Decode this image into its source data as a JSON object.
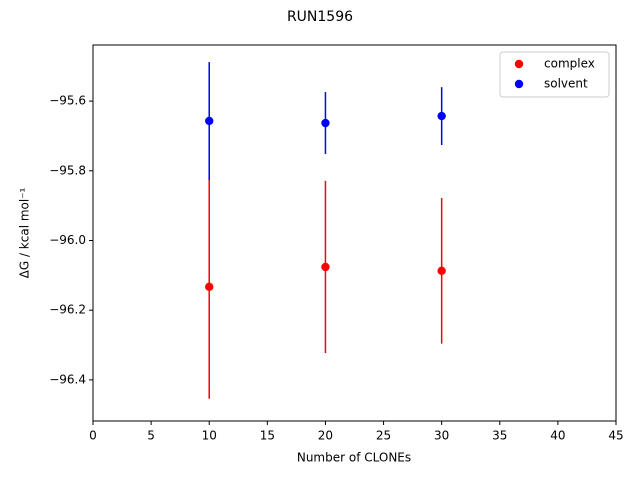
{
  "chart_data": {
    "type": "errorbar-scatter",
    "title": "RUN1596",
    "xlabel": "Number of CLONEs",
    "ylabel": "ΔG / kcal mol⁻¹",
    "xlim": [
      0,
      45
    ],
    "xticks": [
      0,
      5,
      10,
      15,
      20,
      25,
      30,
      35,
      40,
      45
    ],
    "ylim": [
      -96.518,
      -95.439
    ],
    "yticks": [
      {
        "value": -96.4,
        "label": "−96.4"
      },
      {
        "value": -96.2,
        "label": "−96.2"
      },
      {
        "value": -96.0,
        "label": "−96.0"
      },
      {
        "value": -95.8,
        "label": "−95.8"
      },
      {
        "value": -95.6,
        "label": "−95.6"
      }
    ],
    "legend": "upper right",
    "series": [
      {
        "name": "complex",
        "color": "#ff0000",
        "x": [
          10,
          20,
          30
        ],
        "values": [
          -96.133,
          -96.076,
          -96.087
        ],
        "errors": [
          0.321,
          0.247,
          0.209
        ]
      },
      {
        "name": "solvent",
        "color": "#0000ff",
        "x": [
          10,
          20,
          30
        ],
        "values": [
          -95.657,
          -95.663,
          -95.643
        ],
        "errors": [
          0.169,
          0.089,
          0.083
        ]
      }
    ]
  }
}
